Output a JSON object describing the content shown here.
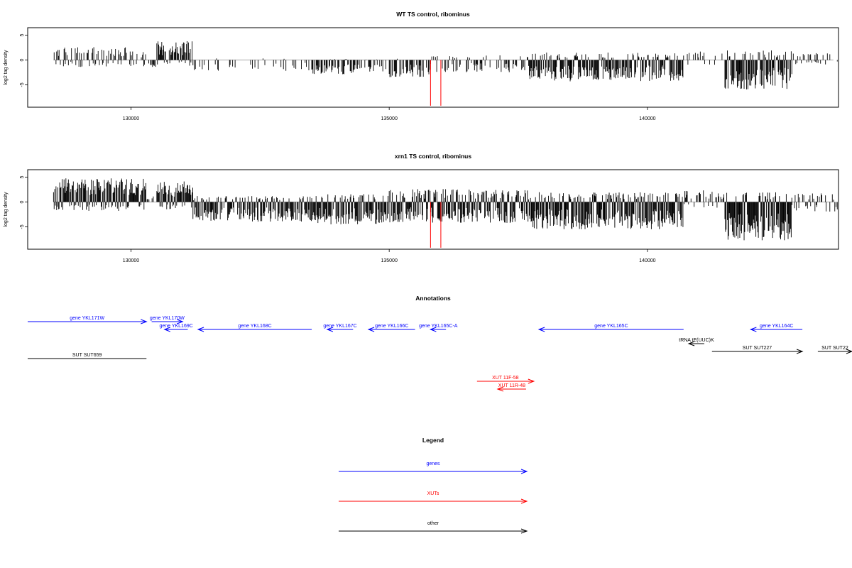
{
  "colors": {
    "genes": "#0000ff",
    "xuts": "#ff0000",
    "other": "#000000",
    "highlight": "#ff0000"
  },
  "chart_data": [
    {
      "type": "bar",
      "id": "wt",
      "title": "WT TS control, ribominus",
      "ylabel": "log2 tag density",
      "xlim": [
        128000,
        143700
      ],
      "ylim": [
        -9.5,
        6.5
      ],
      "xticks": [
        130000,
        135000,
        140000
      ],
      "yticks": [
        5,
        0,
        -5
      ],
      "highlight_positions": [
        135800,
        136000
      ],
      "highlight_depth": -9.2,
      "regions": [
        {
          "start": 128500,
          "end": 129900,
          "pos": 2.6,
          "neg": -1.4,
          "density": 0.55
        },
        {
          "start": 129900,
          "end": 130500,
          "pos": 1.8,
          "neg": -1.6,
          "density": 0.35
        },
        {
          "start": 130500,
          "end": 131200,
          "pos": 3.8,
          "neg": -1.2,
          "density": 0.85
        },
        {
          "start": 131200,
          "end": 133500,
          "pos": 0.4,
          "neg": -2.2,
          "density": 0.25
        },
        {
          "start": 133500,
          "end": 134300,
          "pos": 0.2,
          "neg": -3.0,
          "density": 0.65
        },
        {
          "start": 134300,
          "end": 135000,
          "pos": 0.2,
          "neg": -2.5,
          "density": 0.3
        },
        {
          "start": 135000,
          "end": 135800,
          "pos": 0.3,
          "neg": -3.5,
          "density": 0.55
        },
        {
          "start": 135800,
          "end": 137700,
          "pos": 1.0,
          "neg": -2.5,
          "density": 0.4
        },
        {
          "start": 137700,
          "end": 140700,
          "pos": 1.5,
          "neg": -4.3,
          "density": 0.9
        },
        {
          "start": 140700,
          "end": 141500,
          "pos": 2.0,
          "neg": -1.0,
          "density": 0.25
        },
        {
          "start": 141500,
          "end": 142800,
          "pos": 2.0,
          "neg": -6.0,
          "density": 0.95
        },
        {
          "start": 142800,
          "end": 143700,
          "pos": 1.4,
          "neg": -1.0,
          "density": 0.3
        }
      ]
    },
    {
      "type": "bar",
      "id": "xrn1",
      "title": "xrn1 TS control, ribominus",
      "ylabel": "log2 tag density",
      "xlim": [
        128000,
        143700
      ],
      "ylim": [
        -9.5,
        6.5
      ],
      "xticks": [
        130000,
        135000,
        140000
      ],
      "yticks": [
        5,
        0,
        -5
      ],
      "highlight_positions": [
        135800,
        136000
      ],
      "highlight_depth": -9.2,
      "regions": [
        {
          "start": 128500,
          "end": 130300,
          "pos": 4.8,
          "neg": -1.8,
          "density": 1.0
        },
        {
          "start": 130300,
          "end": 130500,
          "pos": 1.2,
          "neg": -0.8,
          "density": 0.4
        },
        {
          "start": 130500,
          "end": 131200,
          "pos": 4.2,
          "neg": -1.5,
          "density": 1.0
        },
        {
          "start": 131200,
          "end": 133500,
          "pos": 1.2,
          "neg": -4.0,
          "density": 0.85
        },
        {
          "start": 133500,
          "end": 135000,
          "pos": 1.6,
          "neg": -4.5,
          "density": 0.95
        },
        {
          "start": 135000,
          "end": 137700,
          "pos": 2.6,
          "neg": -4.2,
          "density": 0.95
        },
        {
          "start": 137700,
          "end": 140700,
          "pos": 2.0,
          "neg": -5.5,
          "density": 1.0
        },
        {
          "start": 140700,
          "end": 141500,
          "pos": 2.4,
          "neg": -1.2,
          "density": 0.45
        },
        {
          "start": 141500,
          "end": 142800,
          "pos": 2.0,
          "neg": -7.8,
          "density": 1.0
        },
        {
          "start": 142800,
          "end": 143700,
          "pos": 1.8,
          "neg": -2.2,
          "density": 0.45
        }
      ]
    }
  ],
  "annotations": {
    "title": "Annotations",
    "xlim": [
      128000,
      143700
    ],
    "rows": [
      1,
      2,
      3,
      4,
      5,
      6,
      7
    ],
    "features": [
      {
        "label": "gene YKL171W",
        "start": 128000,
        "end": 130300,
        "strand": "+",
        "cls": "genes",
        "row": 1
      },
      {
        "label": "gene YKL170W",
        "start": 130400,
        "end": 131000,
        "strand": "+",
        "cls": "genes",
        "row": 1
      },
      {
        "label": "gene YKL169C",
        "start": 130650,
        "end": 131100,
        "strand": "-",
        "cls": "genes",
        "row": 2
      },
      {
        "label": "gene YKL168C",
        "start": 131300,
        "end": 133500,
        "strand": "-",
        "cls": "genes",
        "row": 2
      },
      {
        "label": "gene YKL167C",
        "start": 133800,
        "end": 134300,
        "strand": "-",
        "cls": "genes",
        "row": 2
      },
      {
        "label": "gene YKL166C",
        "start": 134600,
        "end": 135500,
        "strand": "-",
        "cls": "genes",
        "row": 2
      },
      {
        "label": "gene YKL165C-A",
        "start": 135800,
        "end": 136100,
        "strand": "-",
        "cls": "genes",
        "row": 2
      },
      {
        "label": "gene YKL165C",
        "start": 137900,
        "end": 140700,
        "strand": "-",
        "cls": "genes",
        "row": 2
      },
      {
        "label": "gene YKL164C",
        "start": 142000,
        "end": 143000,
        "strand": "-",
        "cls": "genes",
        "row": 2
      },
      {
        "label": "tRNA tE(UUC)K",
        "start": 140800,
        "end": 141100,
        "strand": "-",
        "cls": "other",
        "row": 3
      },
      {
        "label": "SUT SUT227",
        "start": 141250,
        "end": 143000,
        "strand": "+",
        "cls": "other",
        "row": 4
      },
      {
        "label": "SUT SUT22",
        "start": 143300,
        "end": 144200,
        "strand": "+",
        "cls": "other",
        "row": 4
      },
      {
        "label": "SUT SUT659",
        "start": 128000,
        "end": 130300,
        "strand": "",
        "cls": "other",
        "row": 5
      },
      {
        "label": "XUT 11F-58",
        "start": 136700,
        "end": 137800,
        "strand": "+",
        "cls": "xuts",
        "row": 6
      },
      {
        "label": "XUT 11R-48",
        "start": 137100,
        "end": 137650,
        "strand": "-",
        "cls": "xuts",
        "row": 7
      }
    ]
  },
  "legend": {
    "title": "Legend",
    "items": [
      {
        "label": "genes",
        "cls": "genes"
      },
      {
        "label": "XUTs",
        "cls": "xuts"
      },
      {
        "label": "other",
        "cls": "other"
      }
    ]
  }
}
